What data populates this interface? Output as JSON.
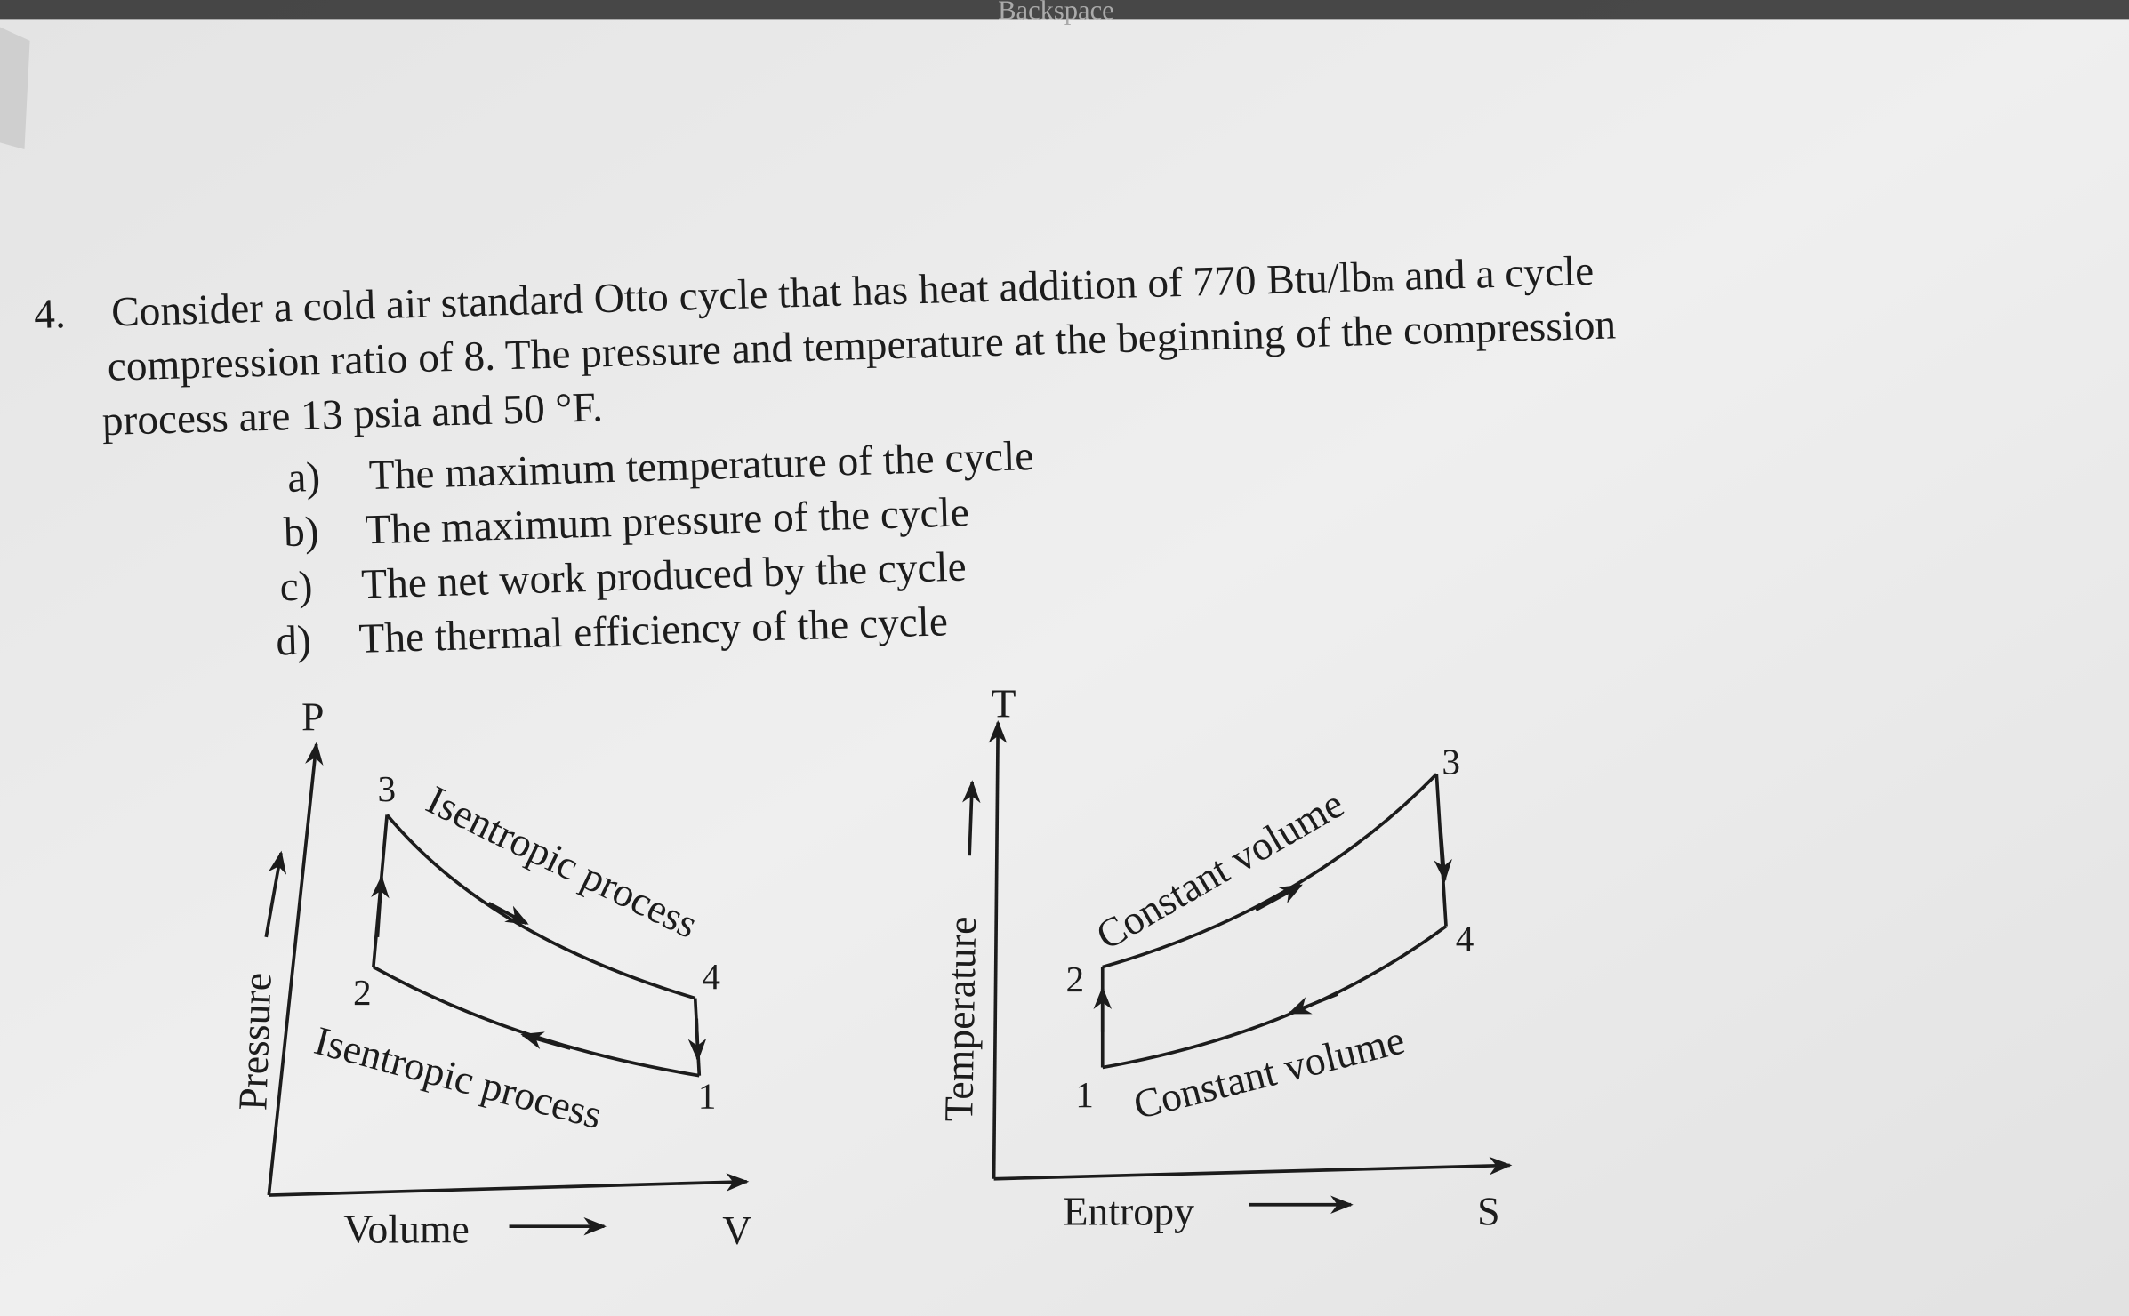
{
  "header": {
    "key_label": "Backspace"
  },
  "problem": {
    "number": "4.",
    "lines": [
      {
        "text": "Consider a cold air standard Otto cycle that has heat addition of 770 Btu/lb",
        "subscript": "m",
        "tail": " and a cycle"
      },
      {
        "text": "compression ratio of 8. The pressure and temperature at the beginning of the compression"
      },
      {
        "text": "process are 13 psia and 50 °F."
      }
    ],
    "parts": [
      {
        "label": "a)",
        "text": "The maximum temperature of the cycle"
      },
      {
        "label": "b)",
        "text": "The maximum pressure of the cycle"
      },
      {
        "label": "c)",
        "text": "The net work produced by the cycle"
      },
      {
        "label": "d)",
        "text": "The thermal efficiency of the cycle"
      }
    ]
  },
  "pv_diagram": {
    "y_axis": "P",
    "x_axis": "V",
    "y_label": "Pressure",
    "x_label": "Volume",
    "upper_process": "Isentropic process",
    "lower_process": "Isentropic process",
    "points": [
      "1",
      "2",
      "3",
      "4"
    ]
  },
  "ts_diagram": {
    "y_axis": "T",
    "x_axis": "S",
    "y_label": "Temperature",
    "x_label": "Entropy",
    "upper_process": "Constant volume",
    "lower_process": "Constant volume",
    "points": [
      "1",
      "2",
      "3",
      "4"
    ]
  }
}
